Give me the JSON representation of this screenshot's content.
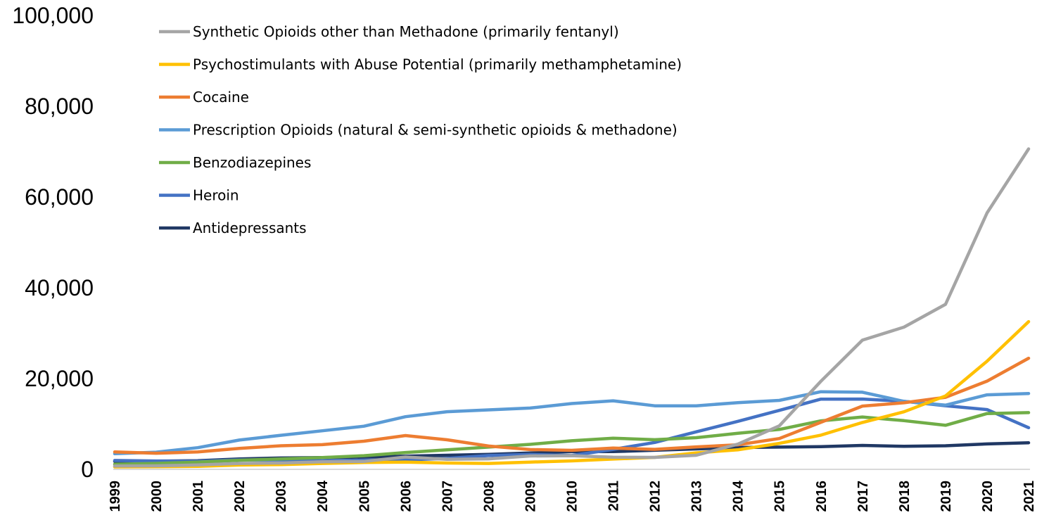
{
  "chart_data": {
    "type": "line",
    "title": "",
    "xlabel": "",
    "ylabel": "",
    "ylim": [
      0,
      100000
    ],
    "yticks": [
      "0",
      "20,000",
      "40,000",
      "60,000",
      "80,000",
      "100,000"
    ],
    "x": [
      "1999",
      "2000",
      "2001",
      "2002",
      "2003",
      "2004",
      "2005",
      "2006",
      "2007",
      "2008",
      "2009",
      "2010",
      "2011",
      "2012",
      "2013",
      "2014",
      "2015",
      "2016",
      "2017",
      "2018",
      "2019",
      "2020",
      "2021"
    ],
    "grid": false,
    "legend_position": "top-left",
    "series": [
      {
        "name": "Synthetic Opioids other than Methadone (primarily fentanyl)",
        "color": "#a5a5a5",
        "values": [
          730,
          782,
          957,
          1295,
          1400,
          1664,
          1742,
          2707,
          2213,
          2306,
          2946,
          3007,
          2666,
          2628,
          3105,
          5544,
          9580,
          19413,
          28466,
          31335,
          36359,
          56516,
          70601
        ]
      },
      {
        "name": "Psychostimulants with Abuse Potential (primarily methamphetamine)",
        "color": "#ffc000",
        "values": [
          547,
          578,
          660,
          948,
          1049,
          1300,
          1500,
          1600,
          1400,
          1300,
          1600,
          1854,
          2266,
          2635,
          3627,
          4298,
          5716,
          7542,
          10333,
          12676,
          16167,
          23837,
          32537
        ]
      },
      {
        "name": "Cocaine",
        "color": "#ed7d31",
        "values": [
          3822,
          3544,
          3833,
          4599,
          5200,
          5443,
          6208,
          7448,
          6512,
          5129,
          4350,
          4183,
          4681,
          4404,
          4944,
          5415,
          6784,
          10375,
          13942,
          14666,
          15883,
          19447,
          24486
        ]
      },
      {
        "name": "Prescription Opioids (natural & semi-synthetic opioids & methadone)",
        "color": "#5b9bd5",
        "values": [
          3442,
          3785,
          4770,
          6450,
          7500,
          8500,
          9500,
          11600,
          12700,
          13100,
          13500,
          14500,
          15100,
          14000,
          14000,
          14700,
          15200,
          17100,
          17000,
          14975,
          14139,
          16416,
          16706
        ]
      },
      {
        "name": "Benzodiazepines",
        "color": "#70ad47",
        "values": [
          1135,
          1298,
          1594,
          2000,
          2300,
          2600,
          3000,
          3700,
          4300,
          4900,
          5500,
          6300,
          6872,
          6524,
          6973,
          7945,
          8791,
          10684,
          11537,
          10724,
          9711,
          12290,
          12499
        ]
      },
      {
        "name": "Heroin",
        "color": "#4472c4",
        "values": [
          1960,
          1842,
          1779,
          2089,
          2080,
          1878,
          2009,
          2088,
          2399,
          3041,
          3278,
          3036,
          4397,
          5925,
          8257,
          10574,
          12989,
          15469,
          15482,
          14996,
          14019,
          13165,
          9173
        ]
      },
      {
        "name": "Antidepressants",
        "color": "#203864",
        "values": [
          1749,
          1810,
          1900,
          2300,
          2500,
          2600,
          2700,
          2900,
          3100,
          3300,
          3600,
          3889,
          3900,
          4200,
          4500,
          4800,
          4900,
          5000,
          5269,
          5064,
          5200,
          5597,
          5863
        ]
      }
    ]
  }
}
